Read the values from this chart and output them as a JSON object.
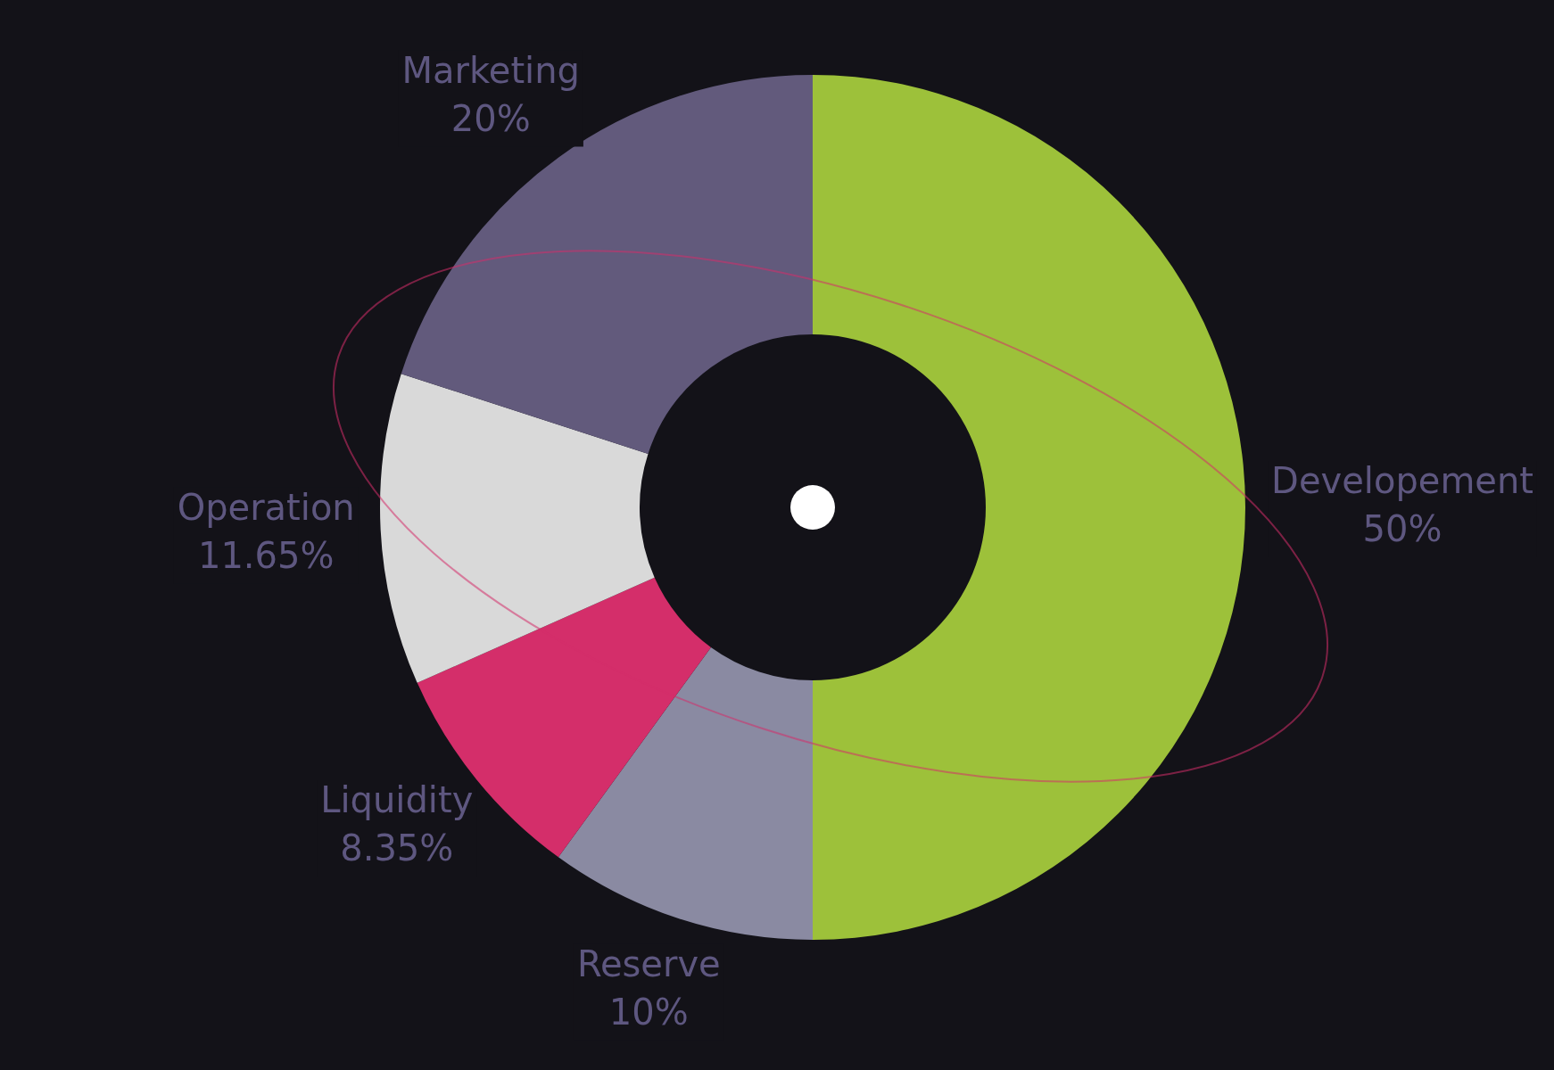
{
  "chart_data": {
    "type": "donut",
    "categories": [
      "Developement",
      "Reserve",
      "Liquidity",
      "Operation",
      "Marketing"
    ],
    "values": [
      50,
      10,
      8.35,
      11.65,
      20
    ],
    "value_labels": [
      "50%",
      "10%",
      "8.35%",
      "11.65%",
      "20%"
    ],
    "colors": [
      "#9dc13a",
      "#8a8aa2",
      "#d42e6a",
      "#d9d9d9",
      "#625a7c"
    ],
    "legend": false
  }
}
